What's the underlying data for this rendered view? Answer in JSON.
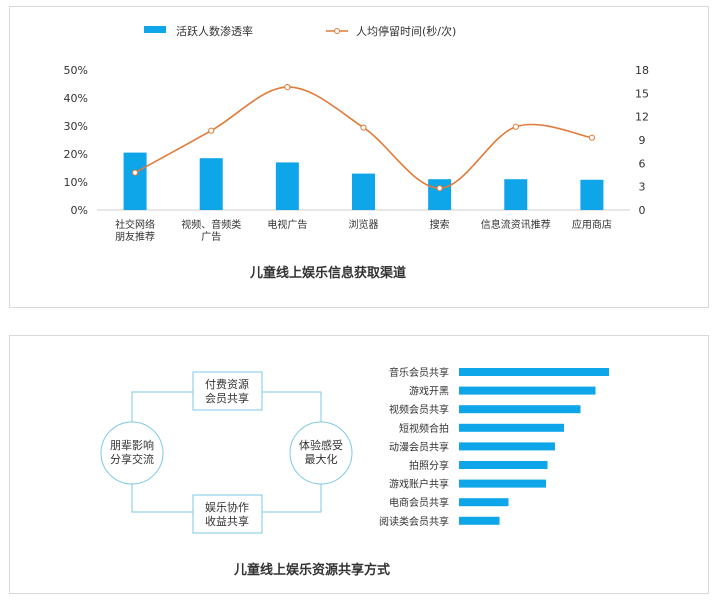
{
  "chart_data": [
    {
      "type": "bar+line",
      "title": "儿童线上娱乐信息获取渠道",
      "categories": [
        "社交网络\n朋友推荐",
        "视频、音频类\n广告",
        "电视广告",
        "浏览器",
        "搜索",
        "信息流资讯推荐",
        "应用商店"
      ],
      "series": [
        {
          "name": "活跃人数渗透率",
          "type": "bar",
          "axis": "left",
          "values": [
            20.5,
            18.5,
            17.0,
            13.0,
            11.0,
            11.0,
            10.8
          ]
        },
        {
          "name": "人均停留时间(秒/次)",
          "type": "line",
          "axis": "right",
          "values": [
            4.8,
            10.2,
            15.8,
            10.6,
            2.8,
            10.7,
            9.3
          ]
        }
      ],
      "ylim_left": [
        0,
        50
      ],
      "yticks_left": [
        "0%",
        "10%",
        "20%",
        "30%",
        "40%",
        "50%"
      ],
      "ylim_right": [
        0,
        18
      ],
      "yticks_right": [
        "0",
        "3",
        "6",
        "9",
        "12",
        "15",
        "18"
      ],
      "colors": {
        "bar": "#0ea5e9",
        "line": "#e07b39"
      },
      "legend": "top-center"
    },
    {
      "type": "bar",
      "orientation": "horizontal",
      "title": "儿童线上娱乐资源共享方式",
      "categories": [
        "音乐会员共享",
        "游戏开黑",
        "视频会员共享",
        "短视频合拍",
        "动漫会员共享",
        "拍照分享",
        "游戏账户共享",
        "电商会员共享",
        "阅读类会员共享"
      ],
      "values": [
        100,
        91,
        81,
        70,
        64,
        59,
        58,
        33,
        27
      ],
      "xlim": [
        0,
        100
      ],
      "colors": {
        "bar": "#0ea5e9"
      }
    }
  ],
  "diagram": {
    "top_box": "付费资源\n会员共享",
    "right_circle": "体验感受\n最大化",
    "bottom_box": "娱乐协作\n收益共享",
    "left_circle": "朋辈影响\n分享交流",
    "colors": {
      "border": "#7ec8e3"
    }
  }
}
